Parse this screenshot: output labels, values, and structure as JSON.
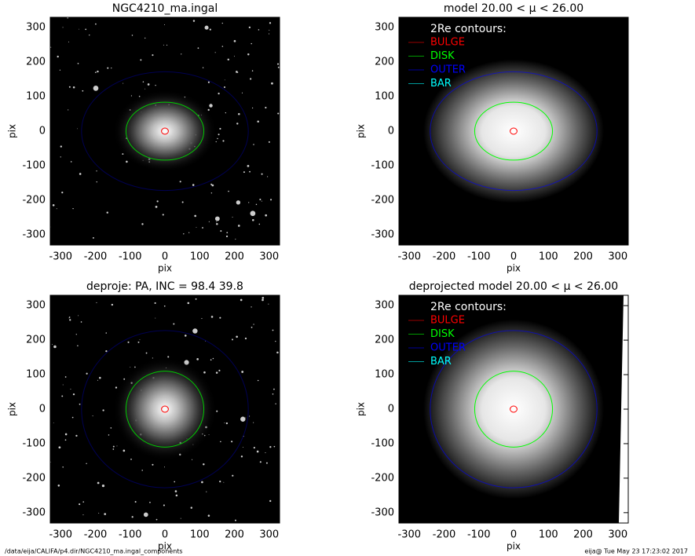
{
  "chart_data": [
    {
      "type": "image",
      "title": "NGC4210_ma.ingal",
      "xlabel": "pix",
      "ylabel": "pix",
      "xlim": [
        -330,
        330
      ],
      "ylim": [
        -330,
        330
      ],
      "xticks": [
        -300,
        -200,
        -100,
        0,
        100,
        200,
        300
      ],
      "yticks": [
        -300,
        -200,
        -100,
        0,
        100,
        200,
        300
      ]
    },
    {
      "type": "model",
      "title": "model  20.00 < μ <  26.00",
      "xlabel": "pix",
      "ylabel": "pix",
      "xlim": [
        -330,
        330
      ],
      "ylim": [
        -330,
        330
      ],
      "xticks": [
        -300,
        -200,
        -100,
        0,
        100,
        200,
        300
      ],
      "yticks": [
        -300,
        -200,
        -100,
        0,
        100,
        200,
        300
      ],
      "legend_title": "2Re contours:",
      "series": [
        {
          "name": "BULGE",
          "color": "#ff0000"
        },
        {
          "name": "DISK",
          "color": "#00ff00"
        },
        {
          "name": "OUTER",
          "color": "#0000ff"
        },
        {
          "name": "BAR",
          "color": "#00ffff"
        }
      ]
    },
    {
      "type": "image",
      "title": "deproje: PA, INC =  98.4   39.8",
      "xlabel": "pix",
      "ylabel": "pix",
      "xlim": [
        -330,
        330
      ],
      "ylim": [
        -330,
        330
      ],
      "xticks": [
        -300,
        -200,
        -100,
        0,
        100,
        200,
        300
      ],
      "yticks": [
        -300,
        -200,
        -100,
        0,
        100,
        200,
        300
      ]
    },
    {
      "type": "model",
      "title": "deprojected model  20.00 < μ <  26.00",
      "xlabel": "pix",
      "ylabel": "pix",
      "xlim": [
        -330,
        330
      ],
      "ylim": [
        -330,
        330
      ],
      "xticks": [
        -300,
        -200,
        -100,
        0,
        100,
        200,
        300
      ],
      "yticks": [
        -300,
        -200,
        -100,
        0,
        100,
        200,
        300
      ],
      "legend_title": "2Re contours:",
      "series": [
        {
          "name": "BULGE",
          "color": "#ff0000"
        },
        {
          "name": "DISK",
          "color": "#00ff00"
        },
        {
          "name": "OUTER",
          "color": "#0000ff"
        },
        {
          "name": "BAR",
          "color": "#00ffff"
        }
      ]
    }
  ],
  "footer": {
    "path": "/data/eija/CALIFA/p4.dir/NGC4210_ma.ingal_components",
    "stamp": "eija@  Tue May 23 17:23:02 2017"
  }
}
